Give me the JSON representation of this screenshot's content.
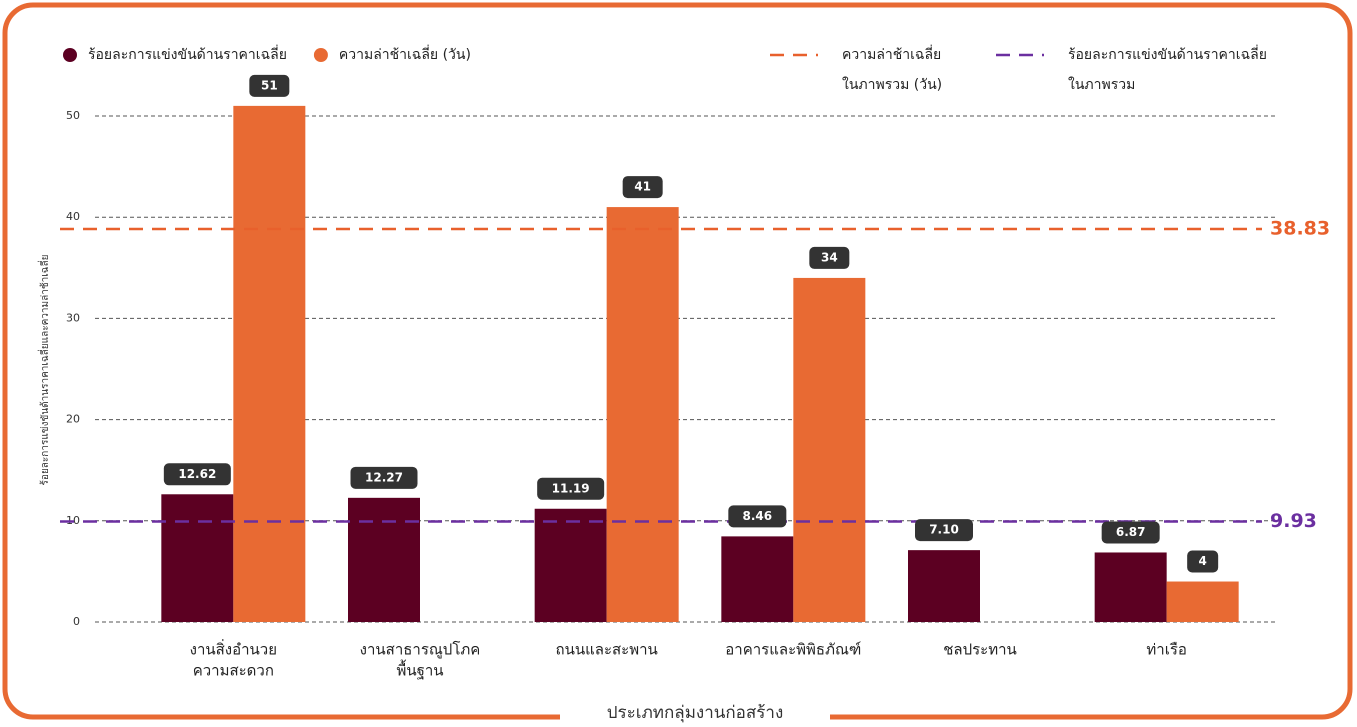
{
  "chart_data": {
    "type": "bar",
    "x_label": "ประเภทกลุ่มงานก่อสร้าง",
    "y_label": "ร้อยละการแข่งขันด้านราคาเฉลี่ยและความล่าช้าเฉลี่ย",
    "categories": [
      [
        "งานสิ่งอำนวย",
        "ความสะดวก"
      ],
      [
        "งานสาธารณูปโภค",
        "พื้นฐาน"
      ],
      [
        "ถนนและสะพาน"
      ],
      [
        "อาคารและพิพิธภัณฑ์"
      ],
      [
        "ชลประทาน"
      ],
      [
        "ท่าเรือ"
      ]
    ],
    "series": [
      {
        "name": "ร้อยละการแข่งขันด้านราคาเฉลี่ย",
        "color": "#5c0022",
        "values": [
          12.62,
          12.27,
          11.19,
          8.46,
          7.1,
          6.87
        ],
        "value_labels": [
          "12.62",
          "12.27",
          "11.19",
          "8.46",
          "7.10",
          "6.87"
        ]
      },
      {
        "name": "ความล่าช้าเฉลี่ย (วัน)",
        "color": "#e86a33",
        "values": [
          51,
          null,
          41,
          34,
          null,
          4
        ],
        "value_labels": [
          "51",
          null,
          "41",
          "34",
          null,
          "4"
        ]
      }
    ],
    "reference_lines": [
      {
        "name": [
          "ความล่าช้าเฉลี่ย",
          "ในภาพรวม (วัน)"
        ],
        "value": 38.83,
        "color": "#e8602c"
      },
      {
        "name": [
          "ร้อยละการแข่งขันด้านราคาเฉลี่ย",
          "ในภาพรวม"
        ],
        "value": 9.93,
        "color": "#6b2fa0"
      }
    ],
    "ylim": [
      0,
      50
    ],
    "yticks": [
      0,
      10,
      20,
      30,
      40,
      50
    ],
    "grid": true
  }
}
